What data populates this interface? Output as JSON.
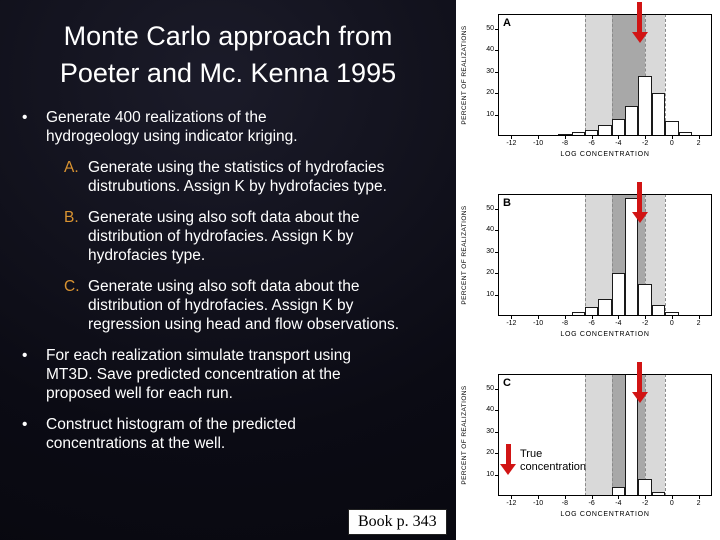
{
  "slide": {
    "title_line1": "Monte Carlo approach from",
    "title_line2": "Poeter and Mc. Kenna 1995",
    "bullet_marker": "•",
    "bullets": [
      {
        "text": "Generate 400 realizations of the hydrogeology using indicator kriging.",
        "subs": [
          {
            "label": "A.",
            "text": "Generate using the statistics of hydrofacies distrubutions. Assign K by hydrofacies type."
          },
          {
            "label": "B.",
            "text": "Generate using also soft data about the distribution of hydrofacies. Assign K by hydrofacies type."
          },
          {
            "label": "C.",
            "text": "Generate using also soft data about the distribution of hydrofacies. Assign K by regression using head and flow observations."
          }
        ]
      },
      {
        "text": "For each realization simulate transport using MT3D. Save predicted concentration at the proposed well for each run.",
        "subs": []
      },
      {
        "text": "Construct histogram of the predicted concentrations at the well.",
        "subs": []
      }
    ],
    "book_label": "Book p. 343"
  },
  "legend": {
    "line1": "True",
    "line2": "concentration"
  },
  "colors": {
    "background": "#0b0b14",
    "text": "#ffffff",
    "sub_label": "#d99331",
    "chart_bg": "#ffffff",
    "arrow_red": "#d11414",
    "band_light": "#d9d9d9",
    "band_dark": "#a8a8a8"
  },
  "chart_data": [
    {
      "type": "bar",
      "panel_label": "A",
      "ylabel": "PERCENT OF REALIZATIONS",
      "xlabel": "LOG CONCENTRATION",
      "yticks": [
        10,
        20,
        30,
        40,
        50
      ],
      "xticks": [
        -12,
        -10,
        -8,
        -6,
        -4,
        -2,
        0,
        2
      ],
      "xlim": [
        -13,
        3
      ],
      "ylim": [
        0,
        57
      ],
      "bins_x": [
        -8,
        -7,
        -6,
        -5,
        -4,
        -3,
        -2,
        -1,
        0,
        1
      ],
      "values": [
        1,
        2,
        3,
        5,
        8,
        14,
        28,
        20,
        7,
        2
      ],
      "bands": [
        {
          "from": -6.5,
          "to": -0.5,
          "color": "#d9d9d9"
        },
        {
          "from": -4.5,
          "to": -2.0,
          "color": "#a8a8a8"
        }
      ],
      "dashed_lines": [
        -6.5,
        -4.5,
        -2.0,
        -0.5
      ],
      "true_value_arrow_x": -2.4,
      "show_legend": false
    },
    {
      "type": "bar",
      "panel_label": "B",
      "ylabel": "PERCENT OF REALIZATIONS",
      "xlabel": "LOG CONCENTRATION",
      "yticks": [
        10,
        20,
        30,
        40,
        50
      ],
      "xticks": [
        -12,
        -10,
        -8,
        -6,
        -4,
        -2,
        0,
        2
      ],
      "xlim": [
        -13,
        3
      ],
      "ylim": [
        0,
        57
      ],
      "bins_x": [
        -7,
        -6,
        -5,
        -4,
        -3,
        -2,
        -1,
        0
      ],
      "values": [
        2,
        4,
        8,
        20,
        55,
        15,
        5,
        2
      ],
      "bands": [
        {
          "from": -6.5,
          "to": -0.5,
          "color": "#d9d9d9"
        },
        {
          "from": -4.5,
          "to": -2.0,
          "color": "#a8a8a8"
        }
      ],
      "dashed_lines": [
        -6.5,
        -4.5,
        -2.0,
        -0.5
      ],
      "true_value_arrow_x": -2.4,
      "show_legend": false
    },
    {
      "type": "bar",
      "panel_label": "C",
      "ylabel": "PERCENT OF REALIZATIONS",
      "xlabel": "LOG CONCENTRATION",
      "yticks": [
        10,
        20,
        30,
        40,
        50
      ],
      "xticks": [
        -12,
        -10,
        -8,
        -6,
        -4,
        -2,
        0,
        2
      ],
      "xlim": [
        -13,
        3
      ],
      "ylim": [
        0,
        57
      ],
      "bins_x": [
        -4,
        -3,
        -2,
        -1
      ],
      "values": [
        4,
        57,
        8,
        2
      ],
      "bands": [
        {
          "from": -6.5,
          "to": -0.5,
          "color": "#d9d9d9"
        },
        {
          "from": -4.5,
          "to": -2.0,
          "color": "#a8a8a8"
        }
      ],
      "dashed_lines": [
        -6.5,
        -4.5,
        -2.0,
        -0.5
      ],
      "true_value_arrow_x": -2.4,
      "show_legend": true
    }
  ]
}
